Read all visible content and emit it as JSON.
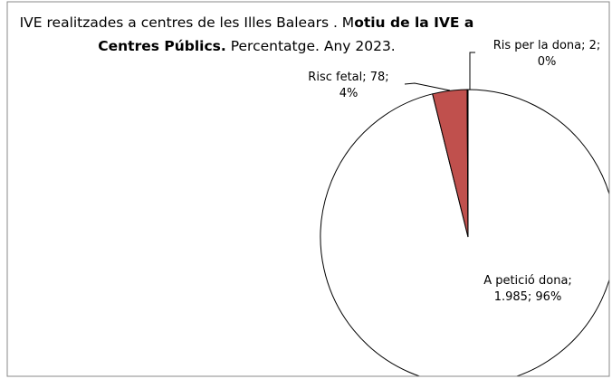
{
  "chart_data": {
    "type": "pie",
    "title": [
      {
        "text": "IVE realitzades a centres de les Illes Balears . M",
        "bold": false
      },
      {
        "text": "otiu de la IVE a Centres Públics.",
        "bold": true
      },
      {
        "text": " Percentatge. Any 2023.",
        "bold": false
      }
    ],
    "categories": [
      "A petició dona",
      "Risc fetal",
      "Ris per la dona"
    ],
    "values": [
      1985,
      78,
      2
    ],
    "value_labels": [
      "A petició dona; 1.985; 96%",
      "Risc fetal; 78; 4%",
      "Ris per la dona; 2; 0%"
    ],
    "colors": [
      "#ffffff",
      "#c0504d",
      "#4f81bd"
    ]
  }
}
